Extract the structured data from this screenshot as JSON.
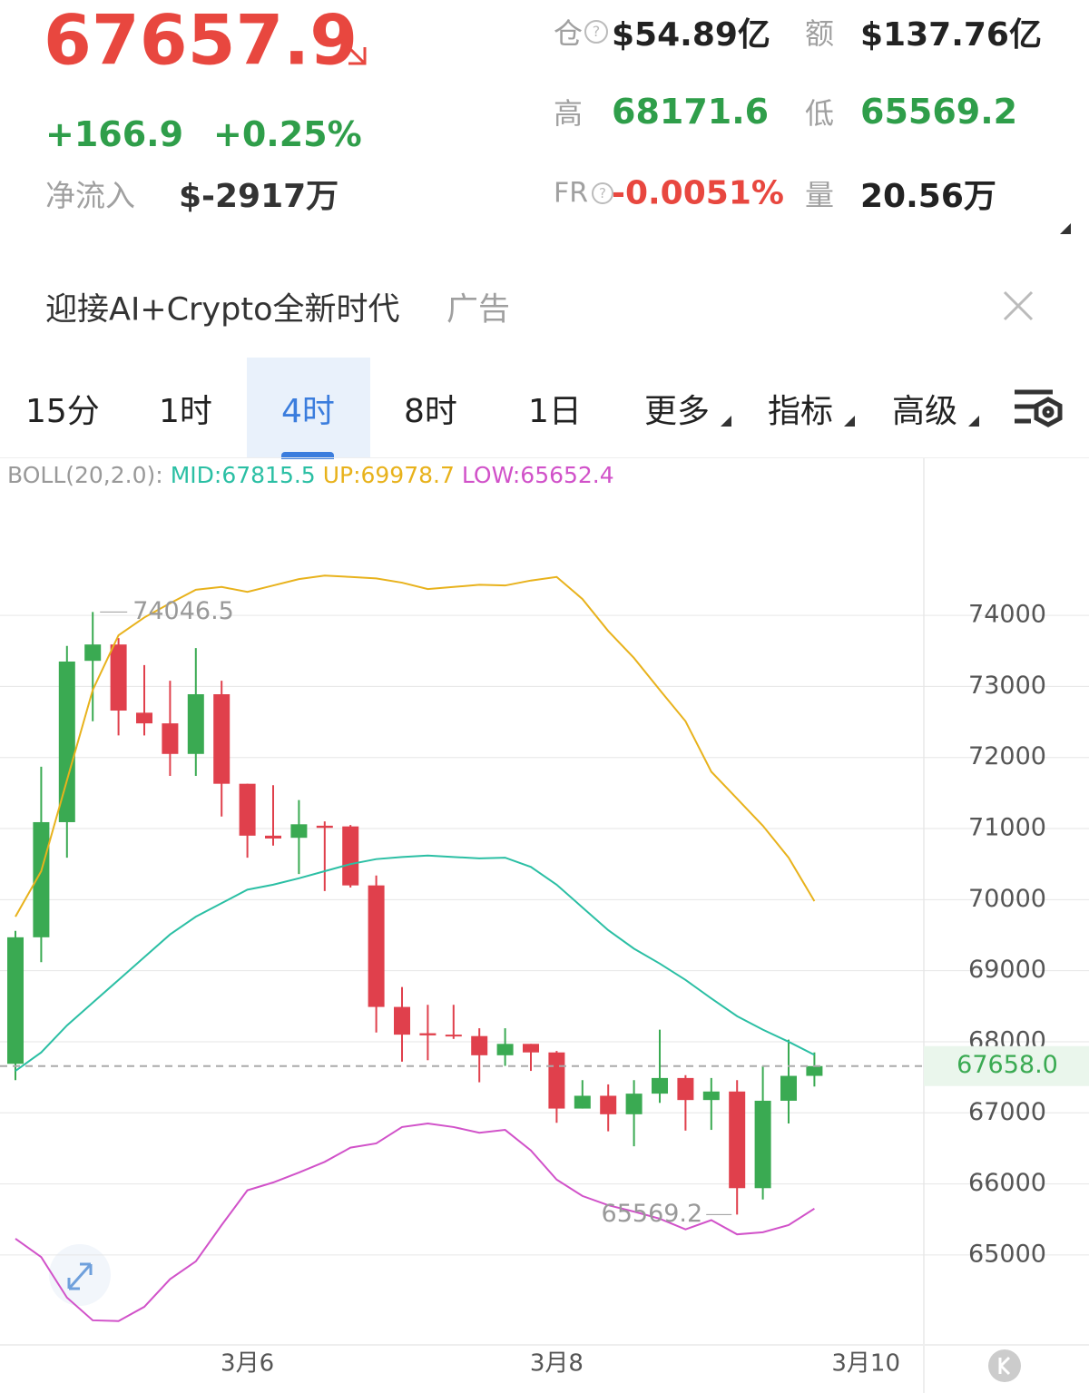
{
  "header": {
    "price": "67657.9",
    "change": "+166.9",
    "change_pct": "+0.25%",
    "net_inflow_label": "净流入",
    "net_inflow": "$-2917万",
    "stats": [
      {
        "label": "仓",
        "value": "$54.89亿"
      },
      {
        "label": "额",
        "value": "$137.76亿"
      },
      {
        "label": "高",
        "value": "68171.6"
      },
      {
        "label": "低",
        "value": "65569.2"
      },
      {
        "label": "FR",
        "value": "-0.0051%"
      },
      {
        "label": "量",
        "value": "20.56万"
      }
    ]
  },
  "ad": {
    "text": "迎接AI+Crypto全新时代",
    "tag": "广告"
  },
  "tabs": [
    "15分",
    "1时",
    "4时",
    "8时",
    "1日",
    "更多",
    "指标",
    "高级"
  ],
  "chart_data": {
    "type": "candlestick",
    "indicator": "BOLL(20,2.0):",
    "categories": [
      null,
      null,
      null,
      null,
      null,
      null,
      null,
      null,
      null,
      "3月6",
      null,
      null,
      null,
      null,
      null,
      null,
      null,
      null,
      null,
      null,
      null,
      "3月8",
      null,
      null,
      null,
      null,
      null,
      null,
      null,
      null,
      null,
      null,
      null,
      "3月10"
    ],
    "open": [
      67690,
      69470,
      71090,
      73360,
      73590,
      72630,
      72480,
      72050,
      72890,
      71630,
      70900,
      70870,
      71040,
      71030,
      70200,
      68490,
      68120,
      68100,
      68080,
      67810,
      67970,
      67850,
      67060,
      67240,
      66980,
      67270,
      67490,
      67180,
      67300,
      65940,
      67170,
      67520,
      null,
      null
    ],
    "high": [
      69560,
      71870,
      73570,
      74046.5,
      73680,
      73300,
      73080,
      73540,
      73080,
      71630,
      71610,
      71400,
      71100,
      71050,
      70340,
      68770,
      68520,
      68520,
      68190,
      68190,
      67970,
      67870,
      67460,
      67400,
      67460,
      68170,
      67530,
      67490,
      67460,
      67660,
      68030,
      67850,
      null,
      null
    ],
    "low": [
      67460,
      69120,
      70590,
      72510,
      72310,
      72310,
      71740,
      71740,
      71170,
      70590,
      70760,
      70360,
      70120,
      70170,
      68130,
      67720,
      67740,
      68040,
      67430,
      67660,
      67590,
      66860,
      67060,
      66740,
      66530,
      67140,
      66750,
      66760,
      65569.2,
      65780,
      66850,
      67370,
      null,
      null
    ],
    "close": [
      69470,
      71090,
      73350,
      73590,
      72660,
      72480,
      72050,
      72890,
      71630,
      70900,
      70860,
      71060,
      71010,
      70200,
      68490,
      68100,
      68090,
      68080,
      67810,
      67970,
      67850,
      67060,
      67240,
      66980,
      67270,
      67490,
      67180,
      67300,
      65940,
      67170,
      67520,
      67658,
      null,
      null
    ],
    "up_color": "#3aaa52",
    "down_color": "#e0404c",
    "series": [
      {
        "name": "MID:67815.5",
        "color": "#2bbfa4",
        "values": [
          67590,
          67850,
          68230,
          68550,
          68870,
          69190,
          69510,
          69760,
          69950,
          70140,
          70210,
          70300,
          70400,
          70500,
          70570,
          70600,
          70620,
          70600,
          70580,
          70590,
          70460,
          70210,
          69890,
          69570,
          69310,
          69100,
          68870,
          68610,
          68360,
          68170,
          68000,
          67815.5,
          null,
          null
        ]
      },
      {
        "name": "UP:69978.7",
        "color": "#e8b21c",
        "values": [
          69760,
          70400,
          71680,
          72950,
          73720,
          73970,
          74170,
          74360,
          74400,
          74330,
          74420,
          74510,
          74560,
          74540,
          74520,
          74460,
          74370,
          74400,
          74430,
          74420,
          74490,
          74540,
          74230,
          73780,
          73400,
          72950,
          72510,
          71800,
          71420,
          71040,
          70590,
          69978.7,
          null,
          null
        ]
      },
      {
        "name": "LOW:65652.4",
        "color": "#d152c9",
        "values": [
          65230,
          64970,
          64400,
          64080,
          64070,
          64270,
          64660,
          64910,
          65420,
          65910,
          66020,
          66160,
          66310,
          66510,
          66570,
          66800,
          66850,
          66800,
          66720,
          66760,
          66470,
          66060,
          65830,
          65700,
          65610,
          65510,
          65360,
          65490,
          65290,
          65320,
          65420,
          65652.4,
          null,
          null
        ]
      }
    ],
    "last_price": {
      "value": 67658,
      "label": "67658.0"
    },
    "ylim": [
      63760,
      76210
    ],
    "yticks": [
      65000,
      66000,
      67000,
      68000,
      69000,
      70000,
      71000,
      72000,
      73000,
      74000
    ],
    "grid": true
  }
}
